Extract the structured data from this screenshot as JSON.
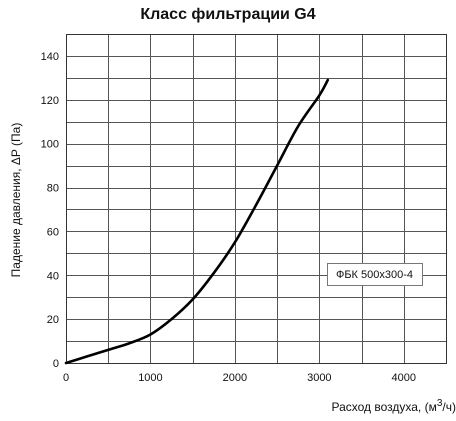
{
  "chart_data": {
    "type": "line",
    "title": "Класс фильтрации G4",
    "xlabel_prefix": "Расход воздуха, (м",
    "xlabel_sup": "3",
    "xlabel_suffix": "/ч)",
    "ylabel": "Падение давления, ΔP (Па)",
    "xlim": [
      0,
      4500
    ],
    "ylim": [
      0,
      150
    ],
    "x_ticks": [
      0,
      1000,
      2000,
      3000,
      4000
    ],
    "y_ticks": [
      0,
      20,
      40,
      60,
      80,
      100,
      120,
      140
    ],
    "x_grid_step": 500,
    "y_grid_step": 10,
    "grid": true,
    "series": [
      {
        "name": "ФБК 500х300-4",
        "color": "#000000",
        "x": [
          0,
          250,
          500,
          750,
          1000,
          1250,
          1500,
          1750,
          2000,
          2250,
          2500,
          2750,
          3000,
          3100
        ],
        "y": [
          0,
          3,
          6,
          9,
          13,
          20,
          29,
          41,
          55,
          72,
          90,
          108,
          122,
          129
        ]
      }
    ],
    "legend_placement": "right-middle"
  }
}
